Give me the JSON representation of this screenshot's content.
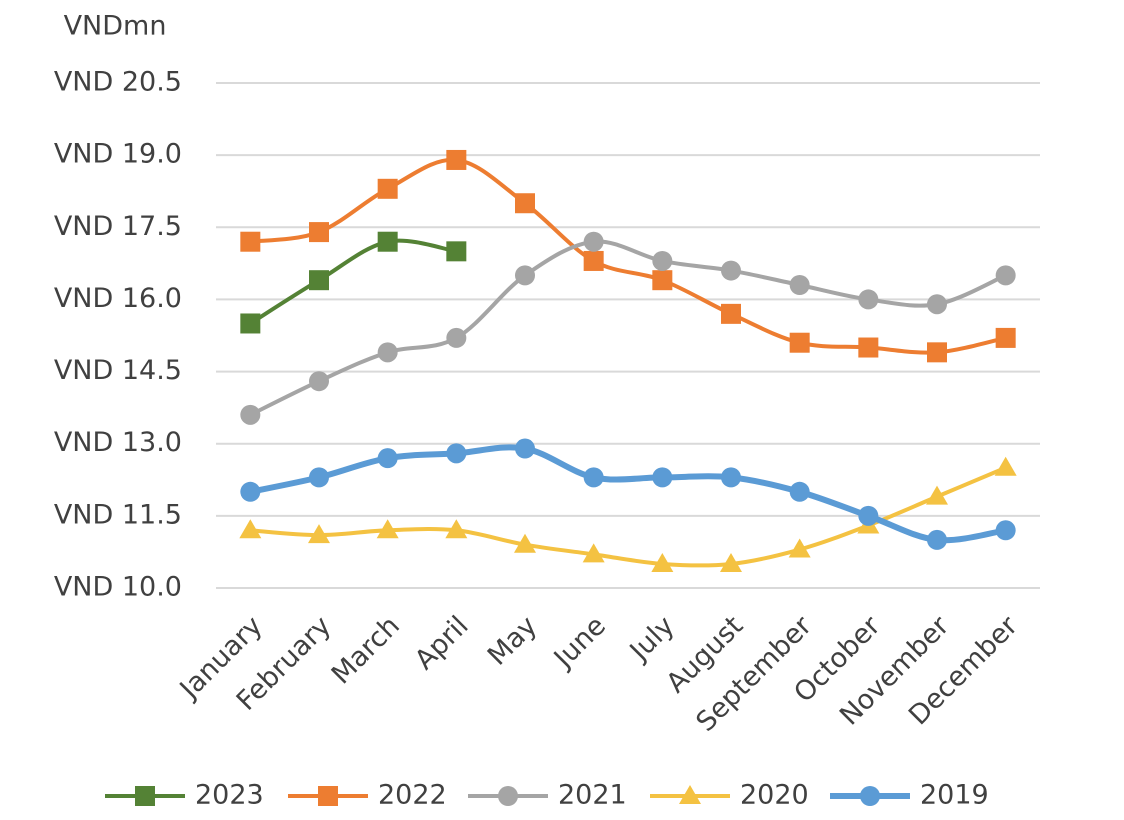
{
  "chart_data": {
    "type": "line",
    "unit_label": "VNDmn",
    "categories": [
      "January",
      "February",
      "March",
      "April",
      "May",
      "June",
      "July",
      "August",
      "September",
      "October",
      "November",
      "December"
    ],
    "series": [
      {
        "name": "2023",
        "color": "#548235",
        "marker": "square",
        "values": [
          15.5,
          16.4,
          17.2,
          17.0,
          null,
          null,
          null,
          null,
          null,
          null,
          null,
          null
        ]
      },
      {
        "name": "2022",
        "color": "#ed7d31",
        "marker": "square",
        "values": [
          17.2,
          17.4,
          18.3,
          18.9,
          18.0,
          16.8,
          16.4,
          15.7,
          15.1,
          15.0,
          14.9,
          15.2
        ]
      },
      {
        "name": "2021",
        "color": "#a5a5a5",
        "marker": "circle",
        "values": [
          13.6,
          14.3,
          14.9,
          15.2,
          16.5,
          17.2,
          16.8,
          16.6,
          16.3,
          16.0,
          15.9,
          16.5
        ]
      },
      {
        "name": "2020",
        "color": "#f4c242",
        "marker": "triangle",
        "values": [
          11.2,
          11.1,
          11.2,
          11.2,
          10.9,
          10.7,
          10.5,
          10.5,
          10.8,
          11.3,
          11.9,
          12.5
        ]
      },
      {
        "name": "2019",
        "color": "#5b9bd5",
        "marker": "circle",
        "values": [
          12.0,
          12.3,
          12.7,
          12.8,
          12.9,
          12.3,
          12.3,
          12.3,
          12.0,
          11.5,
          11.0,
          11.2
        ]
      }
    ],
    "ylim": [
      10.0,
      20.5
    ],
    "yticks": [
      {
        "value": 10.0,
        "label": "VND 10.0"
      },
      {
        "value": 11.5,
        "label": "VND 11.5"
      },
      {
        "value": 13.0,
        "label": "VND 13.0"
      },
      {
        "value": 14.5,
        "label": "VND 14.5"
      },
      {
        "value": 16.0,
        "label": "VND 16.0"
      },
      {
        "value": 17.5,
        "label": "VND 17.5"
      },
      {
        "value": 19.0,
        "label": "VND 19.0"
      },
      {
        "value": 20.5,
        "label": "VND 20.5"
      }
    ],
    "grid": true,
    "smooth": true,
    "legend": "bottom"
  }
}
